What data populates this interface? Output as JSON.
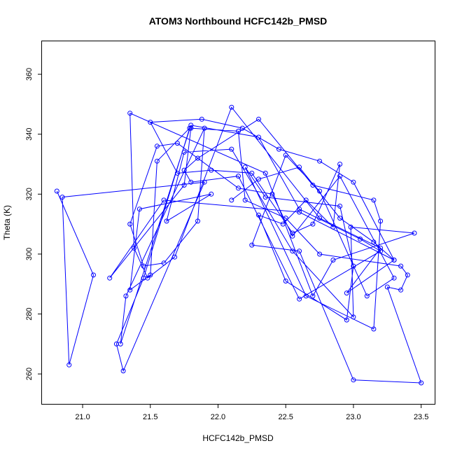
{
  "chart_data": {
    "type": "line",
    "title": "ATOM3 Northbound HCFC142b_PMSD",
    "xlabel": "HCFC142b_PMSD",
    "ylabel": "Theta (K)",
    "xlim": [
      20.7,
      23.6
    ],
    "ylim": [
      250,
      371
    ],
    "xticks": [
      "21.0",
      "21.5",
      "22.0",
      "22.5",
      "23.0",
      "23.5"
    ],
    "yticks": [
      "260",
      "280",
      "300",
      "320",
      "340",
      "360"
    ],
    "grid": false,
    "legend": "none",
    "series": [
      {
        "color": "#0000ff",
        "marker": "open-circle",
        "line": true,
        "x": [
          20.81,
          21.08,
          20.9,
          20.85,
          21.9,
          21.3,
          21.25,
          21.45,
          21.79,
          21.55,
          21.5,
          21.35,
          21.42,
          21.95,
          21.62,
          21.75,
          22.1,
          22.55,
          23.0,
          22.98,
          23.45,
          22.85,
          22.7,
          22.35,
          21.35,
          21.38,
          21.48,
          21.68,
          22.1,
          22.75,
          23.2,
          22.95,
          23.3,
          22.6,
          21.6,
          21.2,
          21.75,
          21.8,
          22.15,
          22.2,
          22.5,
          22.75,
          23.35,
          23.4,
          23.35,
          23.25,
          23.5,
          23.0,
          22.6,
          22.25,
          22.5,
          22.75,
          23.1,
          23.3,
          22.9,
          22.55,
          22.4,
          22.15,
          21.7,
          21.55,
          21.35,
          21.45,
          21.6,
          21.85,
          21.9,
          21.32,
          21.28,
          21.8,
          22.3,
          22.6,
          23.05,
          23.2,
          22.6,
          22.15,
          21.8,
          21.75,
          21.85,
          22.3,
          22.7,
          23.15,
          23.2,
          23.15,
          22.65,
          22.2,
          22.35,
          22.9,
          23.0,
          22.95,
          22.5,
          22.3,
          22.48,
          22.65,
          22.85,
          22.9,
          22.7,
          22.55,
          22.25,
          21.95,
          21.7,
          21.5,
          21.88,
          22.18,
          22.45,
          22.75,
          23.0,
          23.3,
          23.15,
          22.9,
          22.6,
          22.3,
          22.1
        ],
        "y": [
          321,
          293,
          263,
          319,
          324,
          261,
          270,
          292,
          342,
          331,
          293,
          288,
          315,
          320,
          311,
          334,
          335,
          301,
          279,
          309,
          307,
          298,
          286,
          327,
          347,
          302,
          292,
          299,
          349,
          312,
          302,
          287,
          298,
          314,
          318,
          292,
          323,
          342,
          341,
          318,
          312,
          300,
          296,
          293,
          288,
          289,
          257,
          258,
          301,
          303,
          333,
          321,
          286,
          292,
          326,
          306,
          320,
          322,
          337,
          336,
          310,
          296,
          297,
          311,
          342,
          286,
          270,
          343,
          339,
          315,
          305,
          301,
          285,
          326,
          324,
          328,
          332,
          345,
          323,
          318,
          311,
          275,
          286,
          329,
          319,
          316,
          296,
          278,
          291,
          313,
          310,
          318,
          309,
          330,
          310,
          307,
          327,
          328,
          327,
          344,
          345,
          342,
          335,
          331,
          324,
          298,
          304,
          312,
          329,
          325,
          318
        ]
      }
    ]
  }
}
